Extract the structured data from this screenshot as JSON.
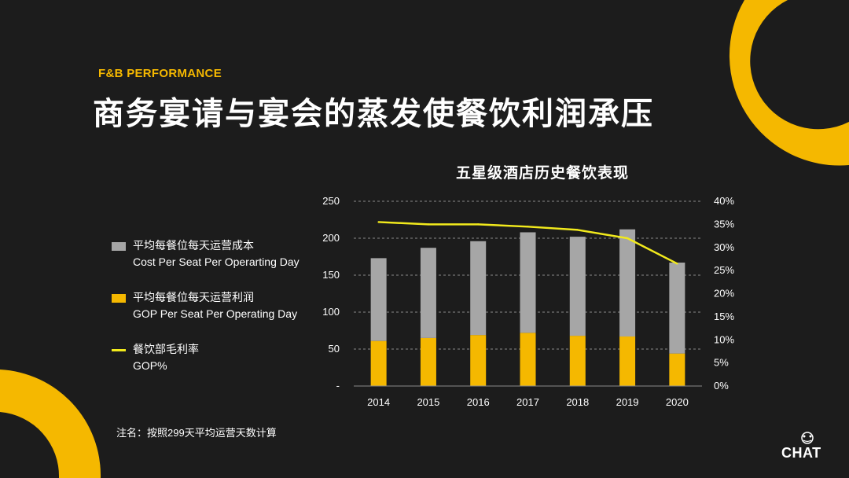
{
  "header": {
    "kicker": "F&B PERFORMANCE",
    "title": "商务宴请与宴会的蒸发使餐饮利润承压"
  },
  "colors": {
    "background": "#1c1c1c",
    "accent_yellow": "#f5b800",
    "cost_gray": "#a6a6a6",
    "gop_line": "#f2ea1c"
  },
  "legend": {
    "cost_cn": "平均每餐位每天运营成本",
    "cost_en": "Cost Per Seat Per Operarting Day",
    "gop_cn": "平均每餐位每天运营利润",
    "gop_en": "GOP Per Seat Per Operating Day",
    "pct_cn": "餐饮部毛利率",
    "pct_en": "GOP%"
  },
  "note": "注名：按照299天平均运营天数计算",
  "brand": "CHAT",
  "chart_data": {
    "type": "bar",
    "title": "五星级酒店历史餐饮表现",
    "categories": [
      "2014",
      "2015",
      "2016",
      "2017",
      "2018",
      "2019",
      "2020"
    ],
    "stacked": true,
    "series": [
      {
        "name": "平均每餐位每天运营利润",
        "type": "bar",
        "axis": "left",
        "color": "#f5b800",
        "values": [
          61,
          65,
          69,
          72,
          68,
          67,
          44
        ]
      },
      {
        "name": "平均每餐位每天运营成本",
        "type": "bar",
        "axis": "left",
        "color": "#a6a6a6",
        "values": [
          112,
          122,
          127,
          136,
          134,
          145,
          123
        ]
      },
      {
        "name": "餐饮部毛利率",
        "type": "line",
        "axis": "right",
        "color": "#f2ea1c",
        "values": [
          35.5,
          35.0,
          35.0,
          34.5,
          33.8,
          32.0,
          26.5
        ]
      }
    ],
    "y_left": {
      "ticks": [
        "-",
        "50",
        "100",
        "150",
        "200",
        "250"
      ],
      "ylim": [
        0,
        250
      ]
    },
    "y_right": {
      "ticks": [
        "0%",
        "5%",
        "10%",
        "15%",
        "20%",
        "25%",
        "30%",
        "35%",
        "40%"
      ],
      "ylim": [
        0,
        40
      ]
    },
    "grid": "horizontal dashed"
  }
}
